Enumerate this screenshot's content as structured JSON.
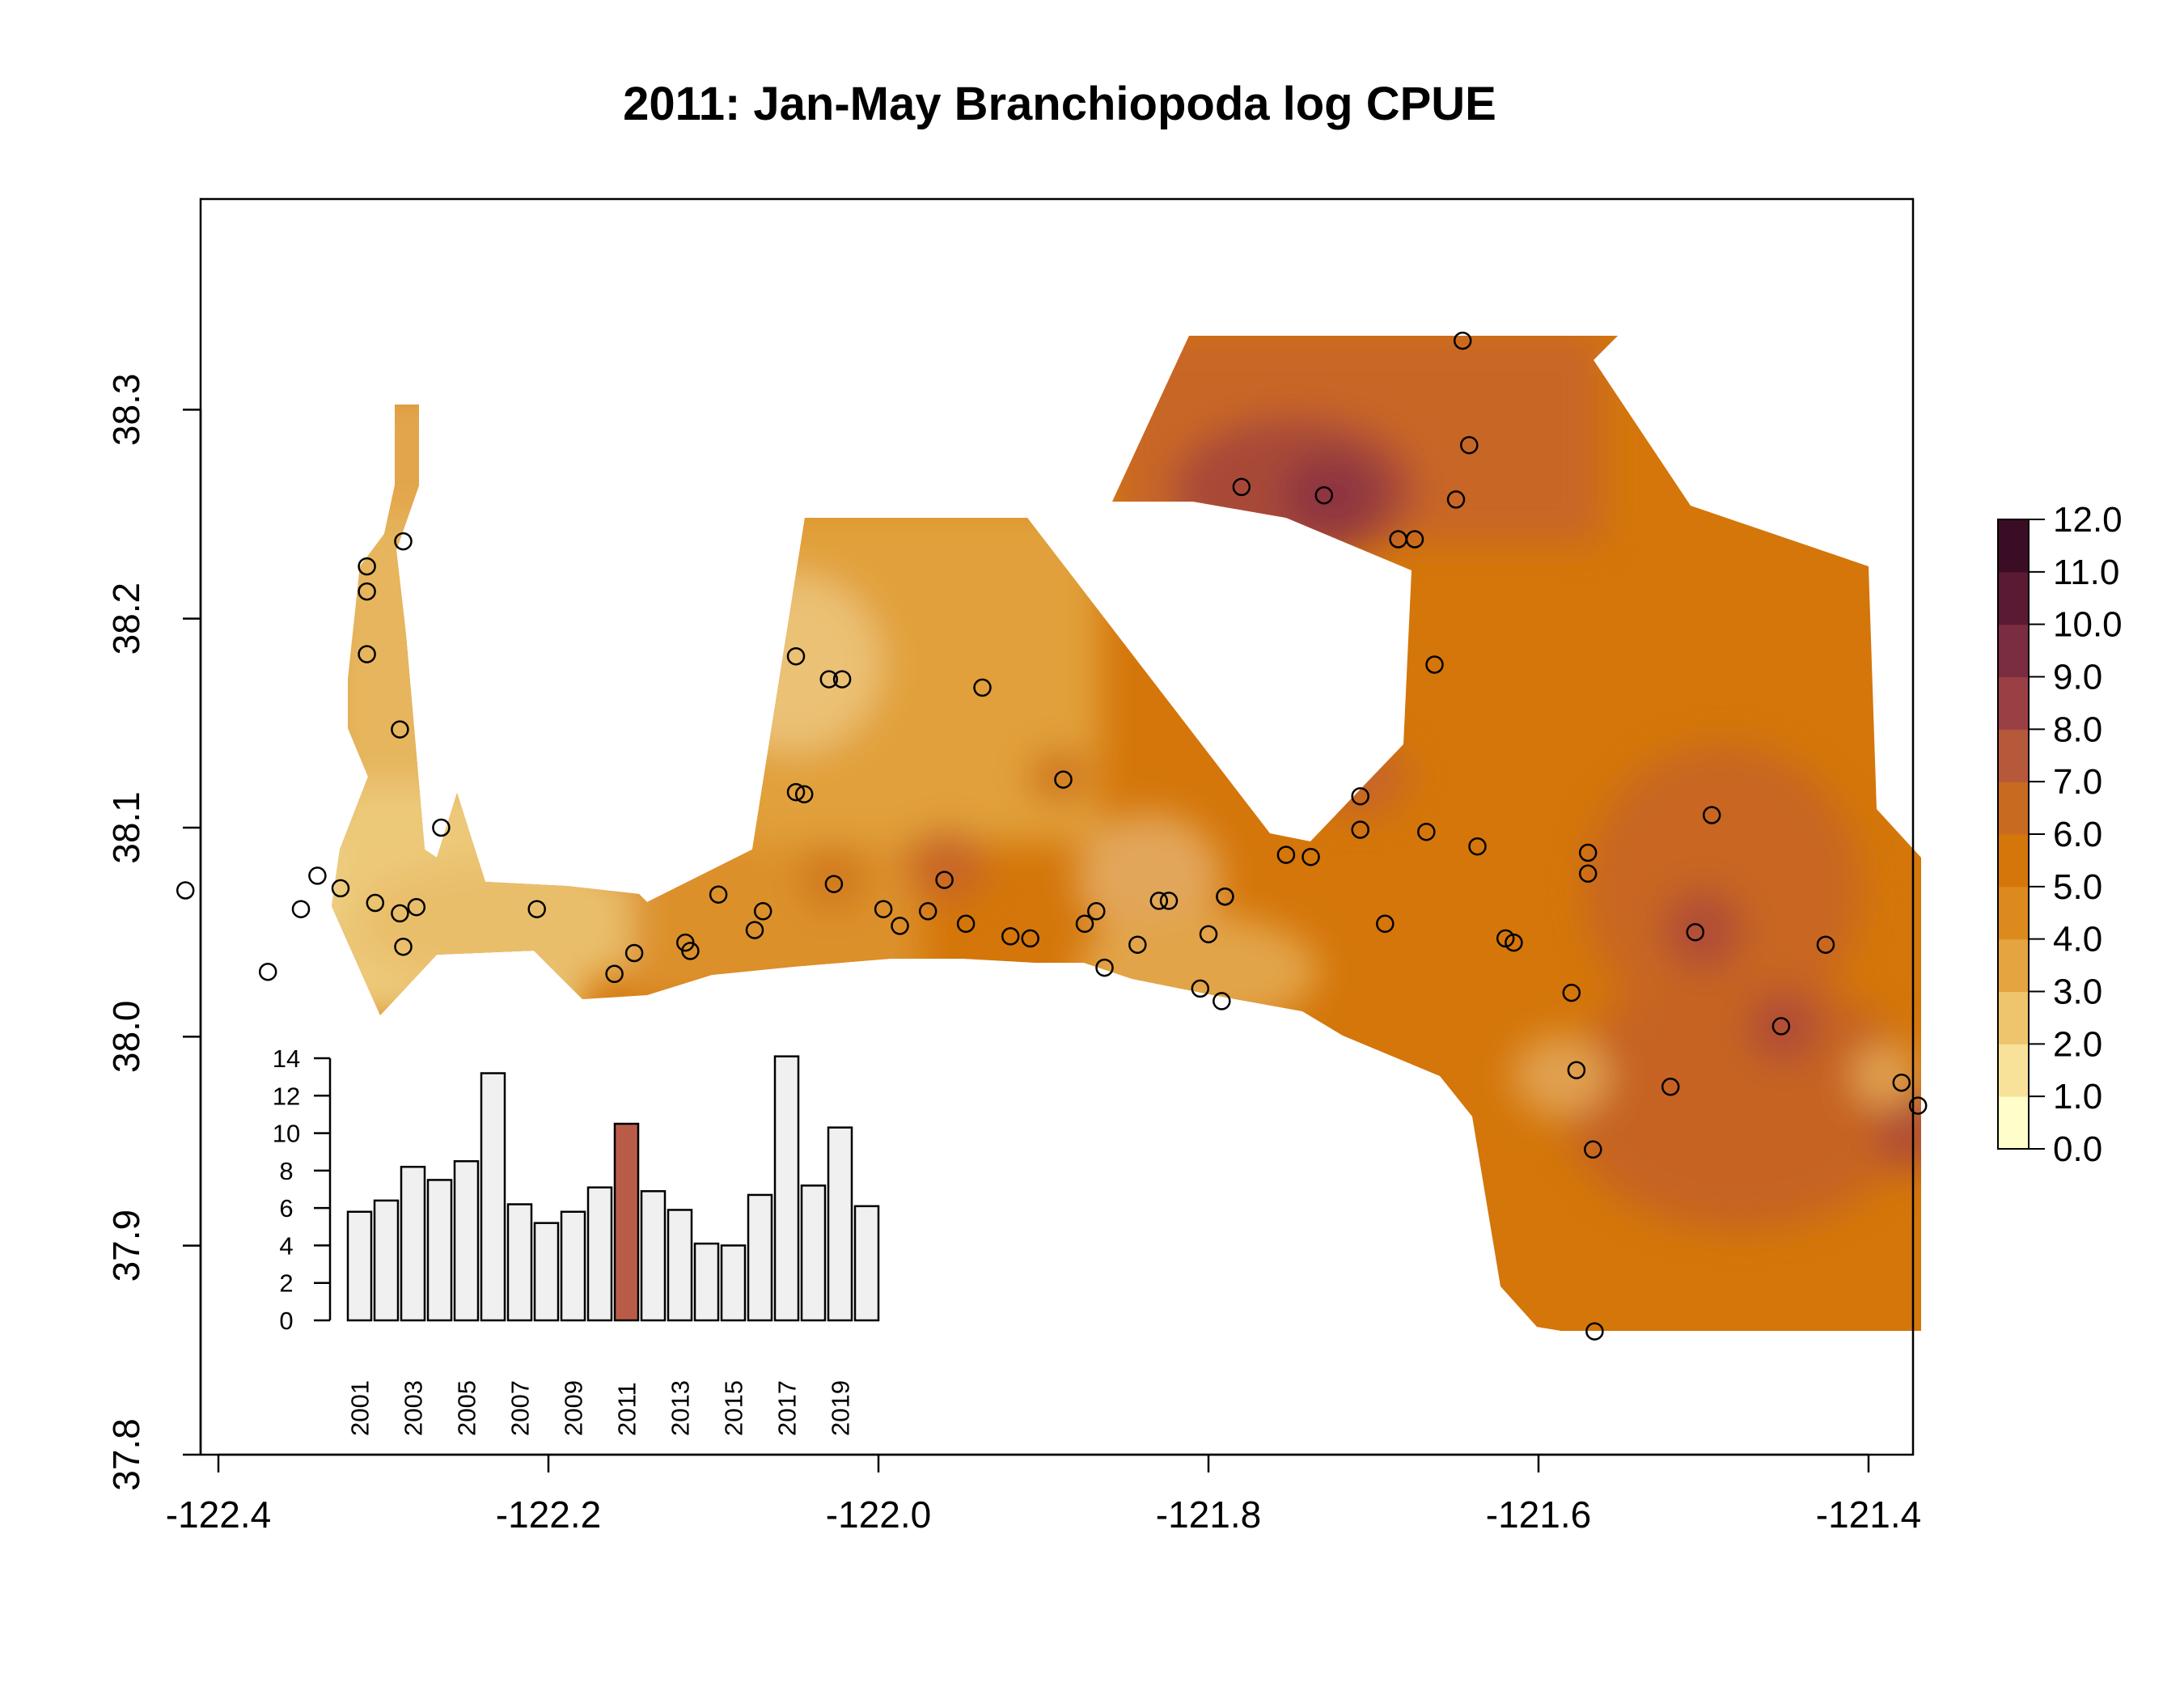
{
  "chart_data": [
    {
      "type": "heatmap",
      "title": "2011: Jan-May Branchiopoda log CPUE",
      "xlabel": "",
      "ylabel": "",
      "xlim": [
        -122.42,
        -121.37
      ],
      "ylim": [
        37.8,
        38.4
      ],
      "x_ticks": [
        -122.4,
        -122.2,
        -122.0,
        -121.8,
        -121.6,
        -121.4
      ],
      "x_tick_labels": [
        "-122.4",
        "-122.2",
        "-122.0",
        "-121.8",
        "-121.6",
        "-121.4"
      ],
      "y_ticks": [
        37.8,
        37.9,
        38.0,
        38.1,
        38.2,
        38.3
      ],
      "y_tick_labels": [
        "37.8",
        "37.9",
        "38.0",
        "38.1",
        "38.2",
        "38.3"
      ],
      "colorbar": {
        "range": [
          0,
          12
        ],
        "ticks": [
          "0.0",
          "1.0",
          "2.0",
          "3.0",
          "4.0",
          "5.0",
          "6.0",
          "7.0",
          "8.0",
          "9.0",
          "10.0",
          "11.0",
          "12.0"
        ],
        "colors": [
          "#fffecb",
          "#f8e29a",
          "#eec46c",
          "#e4a43f",
          "#dc8a1e",
          "#d4760a",
          "#c86a20",
          "#b6583a",
          "#9a4044",
          "#7a2c40",
          "#5a1a34",
          "#3a0d24"
        ]
      },
      "stations": [
        [
          -122.42,
          38.07
        ],
        [
          -122.37,
          38.031
        ],
        [
          -122.35,
          38.061
        ],
        [
          -122.34,
          38.077
        ],
        [
          -122.326,
          38.071
        ],
        [
          -122.305,
          38.064
        ],
        [
          -122.29,
          38.059
        ],
        [
          -122.28,
          38.062
        ],
        [
          -122.288,
          38.043
        ],
        [
          -122.265,
          38.1
        ],
        [
          -122.29,
          38.147
        ],
        [
          -122.31,
          38.183
        ],
        [
          -122.31,
          38.213
        ],
        [
          -122.31,
          38.225
        ],
        [
          -122.288,
          38.237
        ],
        [
          -122.207,
          38.061
        ],
        [
          -122.16,
          38.03
        ],
        [
          -122.148,
          38.04
        ],
        [
          -122.117,
          38.045
        ],
        [
          -122.114,
          38.041
        ],
        [
          -122.097,
          38.068
        ],
        [
          -122.075,
          38.051
        ],
        [
          -122.07,
          38.06
        ],
        [
          -122.05,
          38.117
        ],
        [
          -122.045,
          38.116
        ],
        [
          -122.05,
          38.182
        ],
        [
          -122.03,
          38.171
        ],
        [
          -122.022,
          38.171
        ],
        [
          -122.027,
          38.073
        ],
        [
          -121.997,
          38.061
        ],
        [
          -121.987,
          38.053
        ],
        [
          -121.97,
          38.06
        ],
        [
          -121.96,
          38.075
        ],
        [
          -121.947,
          38.054
        ],
        [
          -121.937,
          38.167
        ],
        [
          -121.92,
          38.048
        ],
        [
          -121.908,
          38.047
        ],
        [
          -121.888,
          38.123
        ],
        [
          -121.875,
          38.054
        ],
        [
          -121.868,
          38.06
        ],
        [
          -121.863,
          38.033
        ],
        [
          -121.843,
          38.044
        ],
        [
          -121.83,
          38.065
        ],
        [
          -121.824,
          38.065
        ],
        [
          -121.805,
          38.023
        ],
        [
          -121.8,
          38.049
        ],
        [
          -121.792,
          38.017
        ],
        [
          -121.79,
          38.067
        ],
        [
          -121.79,
          38.067
        ],
        [
          -121.78,
          38.263
        ],
        [
          -121.753,
          38.087
        ],
        [
          -121.738,
          38.086
        ],
        [
          -121.73,
          38.259
        ],
        [
          -121.708,
          38.115
        ],
        [
          -121.708,
          38.099
        ],
        [
          -121.693,
          38.054
        ],
        [
          -121.685,
          38.238
        ],
        [
          -121.675,
          38.238
        ],
        [
          -121.668,
          38.098
        ],
        [
          -121.663,
          38.178
        ],
        [
          -121.65,
          38.257
        ],
        [
          -121.646,
          38.333
        ],
        [
          -121.642,
          38.283
        ],
        [
          -121.637,
          38.091
        ],
        [
          -121.62,
          38.047
        ],
        [
          -121.615,
          38.045
        ],
        [
          -121.58,
          38.021
        ],
        [
          -121.577,
          37.984
        ],
        [
          -121.57,
          38.088
        ],
        [
          -121.57,
          38.078
        ],
        [
          -121.567,
          37.946
        ],
        [
          -121.566,
          37.859
        ],
        [
          -121.52,
          37.976
        ],
        [
          -121.505,
          38.05
        ],
        [
          -121.495,
          38.106
        ],
        [
          -121.453,
          38.005
        ],
        [
          -121.426,
          38.044
        ],
        [
          -121.38,
          37.978
        ],
        [
          -121.37,
          37.967
        ]
      ]
    },
    {
      "type": "bar",
      "title": "",
      "xlabel": "",
      "ylabel": "",
      "categories": [
        "2001",
        "2002",
        "2003",
        "2004",
        "2005",
        "2006",
        "2007",
        "2008",
        "2009",
        "2010",
        "2011",
        "2012",
        "2013",
        "2014",
        "2015",
        "2016",
        "2017",
        "2018",
        "2019",
        "2020"
      ],
      "x_tick_labels": [
        "2001",
        "2003",
        "2005",
        "2007",
        "2009",
        "2011",
        "2013",
        "2015",
        "2017",
        "2019"
      ],
      "values": [
        5.8,
        6.4,
        8.2,
        7.5,
        8.5,
        13.2,
        6.2,
        5.2,
        5.8,
        7.1,
        10.5,
        6.9,
        5.9,
        4.1,
        4.0,
        6.7,
        14.1,
        7.2,
        10.3,
        6.1
      ],
      "highlight": "2011",
      "ylim": [
        0,
        14
      ],
      "y_ticks": [
        0,
        2,
        4,
        6,
        8,
        10,
        12,
        14
      ],
      "colors": {
        "default": "#f0f0f0",
        "highlight": "#b95c47"
      }
    }
  ]
}
